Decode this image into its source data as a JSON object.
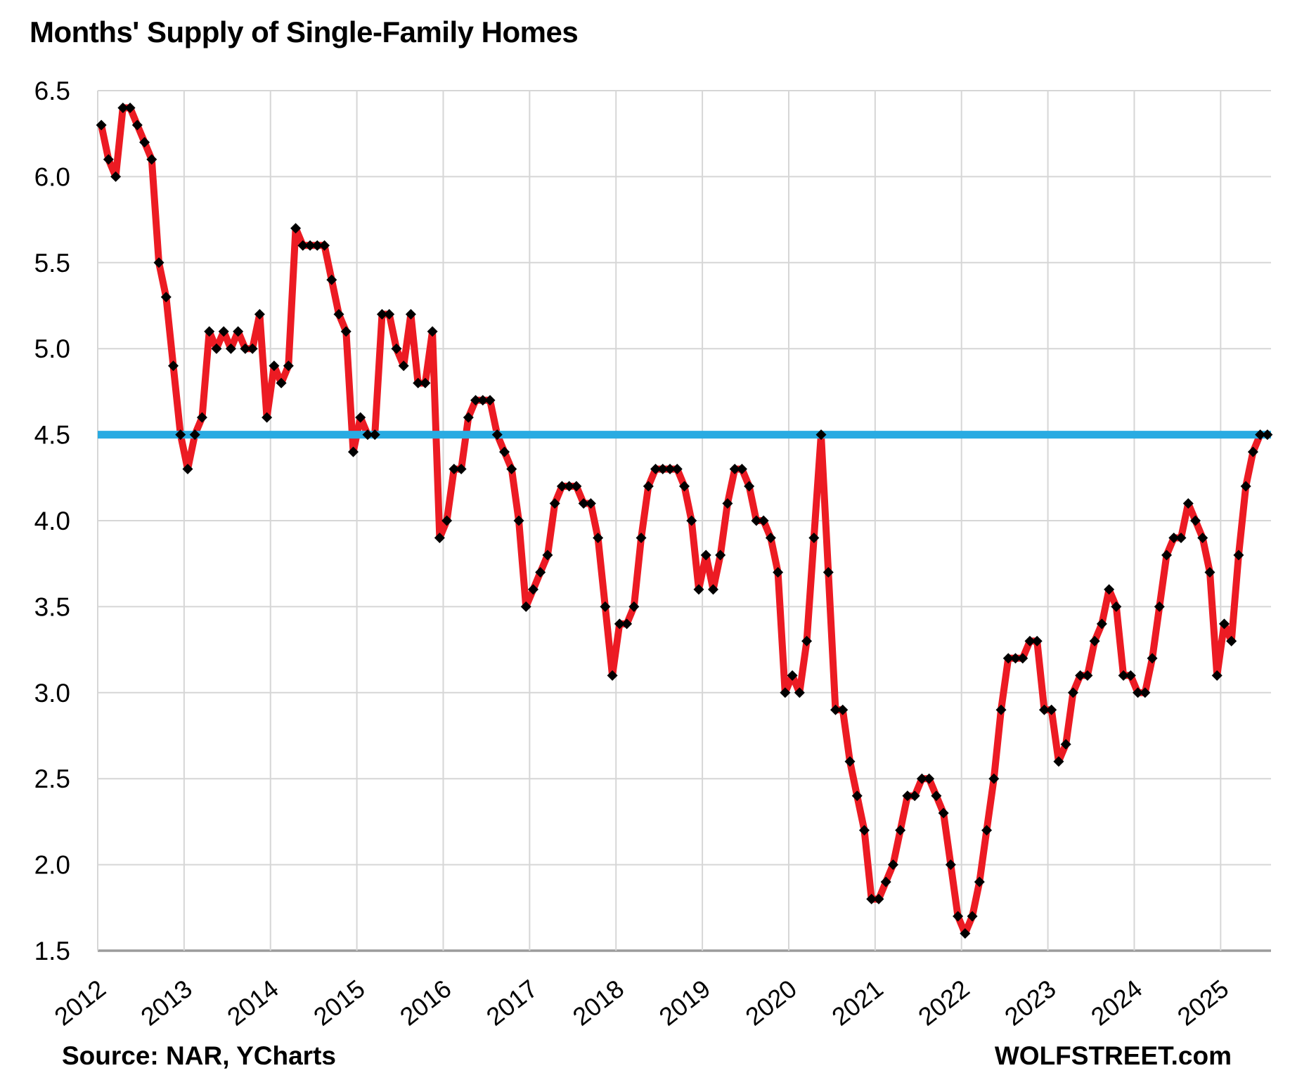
{
  "title": "Months' Supply of Single-Family Homes",
  "footer": {
    "source": "Source: NAR, YCharts",
    "watermark": "WOLFSTREET.com"
  },
  "colors": {
    "series_line": "#ec1b23",
    "marker": "#000000",
    "reference_line": "#29abe2",
    "grid": "#d6d6d6",
    "axis": "#9b9b9b",
    "text": "#000000"
  },
  "chart_data": {
    "type": "line",
    "title": "Months' Supply of Single-Family Homes",
    "frequency": "monthly",
    "x_start": "2012-01",
    "x_end": "2025-07",
    "ylim": [
      1.5,
      6.5
    ],
    "grid": true,
    "legend": "none",
    "y_ticks": [
      {
        "label": "6.5",
        "value": 6.5
      },
      {
        "label": "6.0",
        "value": 6.0
      },
      {
        "label": "5.5",
        "value": 5.5
      },
      {
        "label": "5.0",
        "value": 5.0
      },
      {
        "label": "4.5",
        "value": 4.5
      },
      {
        "label": "4.0",
        "value": 4.0
      },
      {
        "label": "3.5",
        "value": 3.5
      },
      {
        "label": "3.0",
        "value": 3.0
      },
      {
        "label": "2.5",
        "value": 2.5
      },
      {
        "label": "2.0",
        "value": 2.0
      },
      {
        "label": "1.5",
        "value": 1.5
      }
    ],
    "x_ticks": [
      {
        "label": "2012",
        "year": 2012
      },
      {
        "label": "2013",
        "year": 2013
      },
      {
        "label": "2014",
        "year": 2014
      },
      {
        "label": "2015",
        "year": 2015
      },
      {
        "label": "2016",
        "year": 2016
      },
      {
        "label": "2017",
        "year": 2017
      },
      {
        "label": "2018",
        "year": 2018
      },
      {
        "label": "2019",
        "year": 2019
      },
      {
        "label": "2020",
        "year": 2020
      },
      {
        "label": "2021",
        "year": 2021
      },
      {
        "label": "2022",
        "year": 2022
      },
      {
        "label": "2023",
        "year": 2023
      },
      {
        "label": "2024",
        "year": 2024
      },
      {
        "label": "2025",
        "year": 2025
      }
    ],
    "reference_line": {
      "value": 4.5,
      "color": "#29abe2"
    },
    "series": [
      {
        "name": "Months' supply of single-family homes",
        "color": "#ec1b23",
        "marker": "diamond",
        "start_year": 2012,
        "start_month": 1,
        "values": [
          6.3,
          6.1,
          6.0,
          6.4,
          6.4,
          6.3,
          6.2,
          6.1,
          5.5,
          5.3,
          4.9,
          4.5,
          4.3,
          4.5,
          4.6,
          5.1,
          5.0,
          5.1,
          5.0,
          5.1,
          5.0,
          5.0,
          5.2,
          4.6,
          4.9,
          4.8,
          4.9,
          5.7,
          5.6,
          5.6,
          5.6,
          5.6,
          5.4,
          5.2,
          5.1,
          4.4,
          4.6,
          4.5,
          4.5,
          5.2,
          5.2,
          5.0,
          4.9,
          5.2,
          4.8,
          4.8,
          5.1,
          3.9,
          4.0,
          4.3,
          4.3,
          4.6,
          4.7,
          4.7,
          4.7,
          4.5,
          4.4,
          4.3,
          4.0,
          3.5,
          3.6,
          3.7,
          3.8,
          4.1,
          4.2,
          4.2,
          4.2,
          4.1,
          4.1,
          3.9,
          3.5,
          3.1,
          3.4,
          3.4,
          3.5,
          3.9,
          4.2,
          4.3,
          4.3,
          4.3,
          4.3,
          4.2,
          4.0,
          3.6,
          3.8,
          3.6,
          3.8,
          4.1,
          4.3,
          4.3,
          4.2,
          4.0,
          4.0,
          3.9,
          3.7,
          3.0,
          3.1,
          3.0,
          3.3,
          3.9,
          4.5,
          3.7,
          2.9,
          2.9,
          2.6,
          2.4,
          2.2,
          1.8,
          1.8,
          1.9,
          2.0,
          2.2,
          2.4,
          2.4,
          2.5,
          2.5,
          2.4,
          2.3,
          2.0,
          1.7,
          1.6,
          1.7,
          1.9,
          2.2,
          2.5,
          2.9,
          3.2,
          3.2,
          3.2,
          3.3,
          3.3,
          2.9,
          2.9,
          2.6,
          2.7,
          3.0,
          3.1,
          3.1,
          3.3,
          3.4,
          3.6,
          3.5,
          3.1,
          3.1,
          3.0,
          3.0,
          3.2,
          3.5,
          3.8,
          3.9,
          3.9,
          4.1,
          4.0,
          3.9,
          3.7,
          3.1,
          3.4,
          3.3,
          3.8,
          4.2,
          4.4,
          4.5,
          4.5
        ]
      }
    ]
  }
}
